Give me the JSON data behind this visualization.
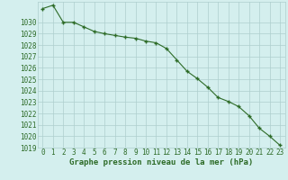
{
  "x": [
    0,
    1,
    2,
    3,
    4,
    5,
    6,
    7,
    8,
    9,
    10,
    11,
    12,
    13,
    14,
    15,
    16,
    17,
    18,
    19,
    20,
    21,
    22,
    23
  ],
  "y": [
    1031.2,
    1031.5,
    1030.0,
    1030.0,
    1029.6,
    1029.2,
    1029.0,
    1028.85,
    1028.7,
    1028.6,
    1028.35,
    1028.2,
    1027.7,
    1026.7,
    1025.7,
    1025.05,
    1024.3,
    1023.4,
    1023.05,
    1022.6,
    1021.8,
    1020.7,
    1020.0,
    1019.2
  ],
  "ylim": [
    1019,
    1031.8
  ],
  "yticks": [
    1019,
    1020,
    1021,
    1022,
    1023,
    1024,
    1025,
    1026,
    1027,
    1028,
    1029,
    1030
  ],
  "xlabel": "Graphe pression niveau de la mer (hPa)",
  "line_color": "#2d6b27",
  "bg_color": "#d4efee",
  "grid_color": "#aecece",
  "marker": "+",
  "marker_size": 3.5,
  "linewidth": 0.8,
  "tick_fontsize": 5.5,
  "xlabel_fontsize": 6.5
}
